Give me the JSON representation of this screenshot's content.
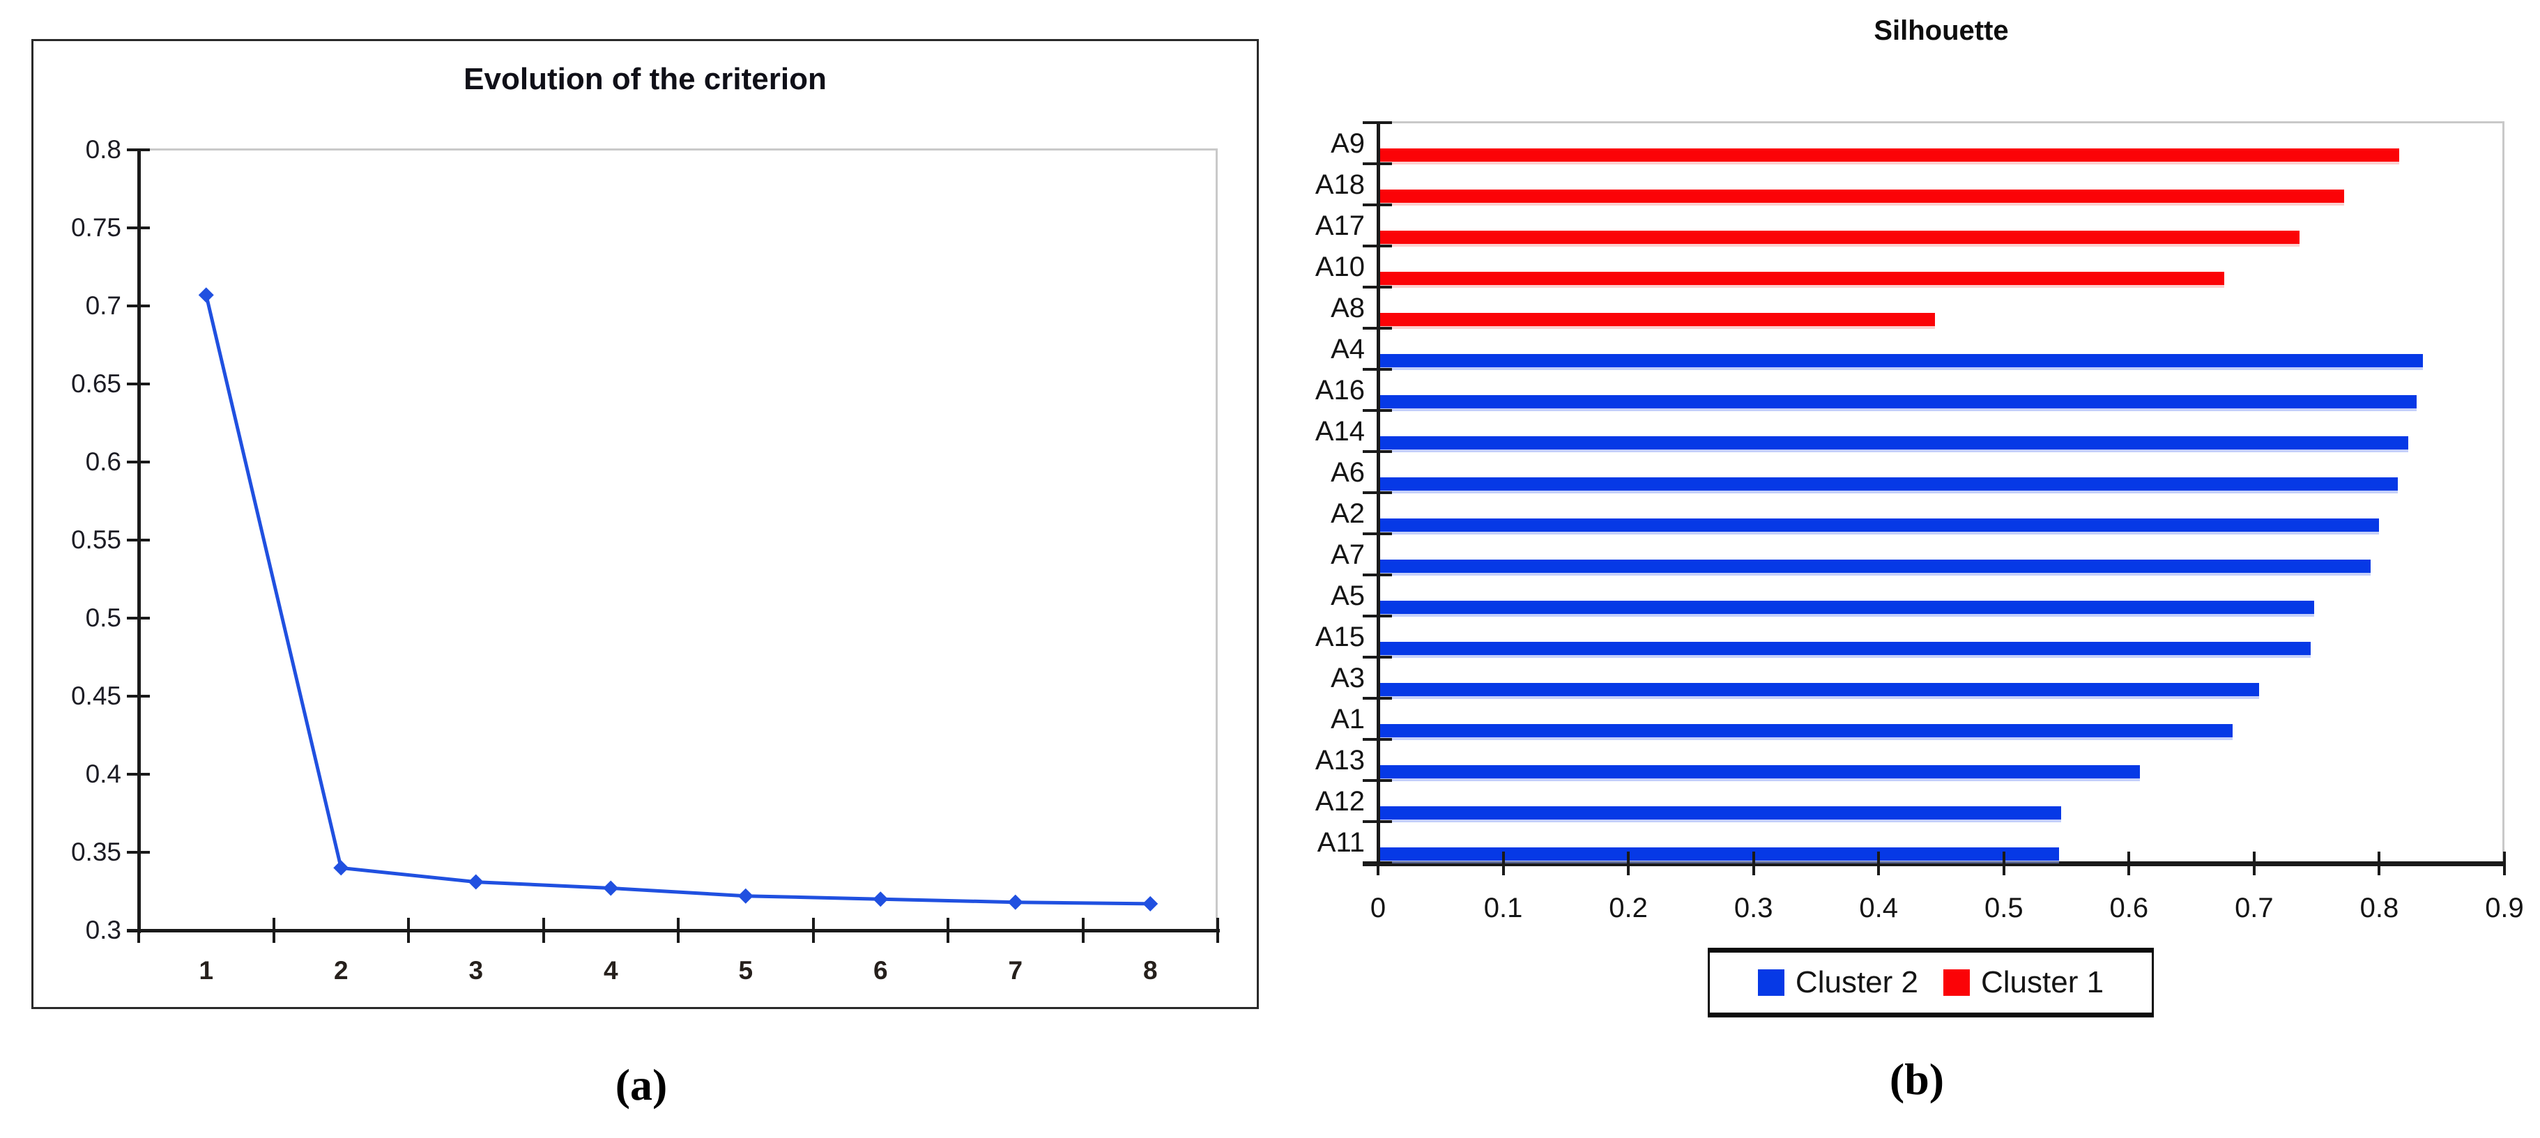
{
  "figure": {
    "caption_a": "(a)",
    "caption_b": "(b)"
  },
  "colors": {
    "cluster2_blue": "#0639e6",
    "cluster1_red": "#fb0307",
    "line_blue": "#2050e0",
    "axis_black": "#1a1a1a",
    "plot_border_gray": "#c9c9c9"
  },
  "chart_data": [
    {
      "type": "line",
      "title": "Evolution of the criterion",
      "xlabel": "",
      "ylabel": "",
      "x_categories": [
        "1",
        "2",
        "3",
        "4",
        "5",
        "6",
        "7",
        "8"
      ],
      "values": [
        0.707,
        0.34,
        0.331,
        0.327,
        0.322,
        0.32,
        0.318,
        0.317
      ],
      "ylim": [
        0.3,
        0.8
      ],
      "ytick_values": [
        0.8,
        0.75,
        0.7,
        0.65,
        0.6,
        0.55,
        0.5,
        0.45,
        0.4,
        0.35,
        0.3
      ],
      "ytick_labels": [
        "0.8",
        "0.75",
        "0.7",
        "0.65",
        "0.6",
        "0.55",
        "0.5",
        "0.45",
        "0.4",
        "0.35",
        "0.3"
      ],
      "line_color": "#2050e0",
      "marker": "diamond",
      "grid": false,
      "legend_position": "none"
    },
    {
      "type": "bar",
      "orientation": "horizontal",
      "title": "Silhouette",
      "xlabel": "",
      "ylabel": "",
      "xlim": [
        0,
        0.9
      ],
      "xtick_values": [
        0,
        0.1,
        0.2,
        0.3,
        0.4,
        0.5,
        0.6,
        0.7,
        0.8,
        0.9
      ],
      "xtick_labels": [
        "0",
        "0.1",
        "0.2",
        "0.3",
        "0.4",
        "0.5",
        "0.6",
        "0.7",
        "0.8",
        "0.9"
      ],
      "grid": false,
      "legend_position": "bottom",
      "rows": [
        {
          "label": "A9",
          "value": 0.816,
          "series": "Cluster 1"
        },
        {
          "label": "A18",
          "value": 0.772,
          "series": "Cluster 1"
        },
        {
          "label": "A17",
          "value": 0.736,
          "series": "Cluster 1"
        },
        {
          "label": "A10",
          "value": 0.676,
          "series": "Cluster 1"
        },
        {
          "label": "A8",
          "value": 0.445,
          "series": "Cluster 1"
        },
        {
          "label": "A4",
          "value": 0.835,
          "series": "Cluster 2"
        },
        {
          "label": "A16",
          "value": 0.83,
          "series": "Cluster 2"
        },
        {
          "label": "A14",
          "value": 0.823,
          "series": "Cluster 2"
        },
        {
          "label": "A6",
          "value": 0.815,
          "series": "Cluster 2"
        },
        {
          "label": "A2",
          "value": 0.8,
          "series": "Cluster 2"
        },
        {
          "label": "A7",
          "value": 0.793,
          "series": "Cluster 2"
        },
        {
          "label": "A5",
          "value": 0.748,
          "series": "Cluster 2"
        },
        {
          "label": "A15",
          "value": 0.745,
          "series": "Cluster 2"
        },
        {
          "label": "A3",
          "value": 0.704,
          "series": "Cluster 2"
        },
        {
          "label": "A1",
          "value": 0.683,
          "series": "Cluster 2"
        },
        {
          "label": "A13",
          "value": 0.609,
          "series": "Cluster 2"
        },
        {
          "label": "A12",
          "value": 0.546,
          "series": "Cluster 2"
        },
        {
          "label": "A11",
          "value": 0.544,
          "series": "Cluster 2"
        }
      ],
      "series": [
        {
          "name": "Cluster 2",
          "color": "#0639e6",
          "categories": [
            "A4",
            "A16",
            "A14",
            "A6",
            "A2",
            "A7",
            "A5",
            "A15",
            "A3",
            "A1",
            "A13",
            "A12",
            "A11"
          ],
          "values": [
            0.835,
            0.83,
            0.823,
            0.815,
            0.8,
            0.793,
            0.748,
            0.745,
            0.704,
            0.683,
            0.609,
            0.546,
            0.544
          ]
        },
        {
          "name": "Cluster 1",
          "color": "#fb0307",
          "categories": [
            "A9",
            "A18",
            "A17",
            "A10",
            "A8"
          ],
          "values": [
            0.816,
            0.772,
            0.736,
            0.676,
            0.445
          ]
        }
      ],
      "legend": [
        {
          "label": "Cluster 2",
          "color": "#0639e6"
        },
        {
          "label": "Cluster 1",
          "color": "#fb0307"
        }
      ]
    }
  ]
}
